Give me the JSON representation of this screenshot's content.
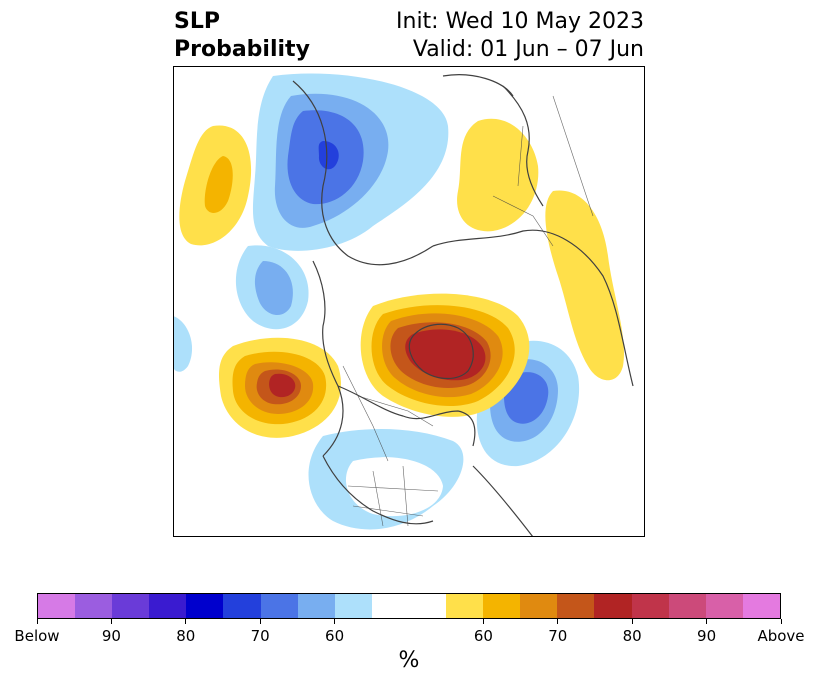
{
  "title": {
    "left_line1": "SLP",
    "left_line2": "Probability",
    "right_line1": "Init: Wed 10 May 2023",
    "right_line2": "Valid: 01 Jun – 07 Jun"
  },
  "map": {
    "projection": "north-polar-stereographic",
    "features": {
      "land_lines_color": "#404040",
      "anomalies": [
        {
          "label": "Gulf of Alaska above-normal center",
          "category": "above",
          "peak_pct": 80
        },
        {
          "label": "Greenland / Canadian Arctic above-normal center",
          "category": "above",
          "peak_pct": 80
        },
        {
          "label": "Eastern Europe / Scandinavia above-normal area",
          "category": "above",
          "peak_pct": 60
        },
        {
          "label": "North Pacific above-normal area",
          "category": "above",
          "peak_pct": 65
        },
        {
          "label": "Siberia below-normal center",
          "category": "below",
          "peak_pct": 75
        },
        {
          "label": "North Atlantic below-normal center",
          "category": "below",
          "peak_pct": 70
        },
        {
          "label": "Bering Sea below-normal area",
          "category": "below",
          "peak_pct": 65
        },
        {
          "label": "Central/Western US below-normal area",
          "category": "below",
          "peak_pct": 60
        }
      ]
    }
  },
  "colorbar": {
    "colors": [
      "#d67ae6",
      "#9b5de0",
      "#6a3bd8",
      "#3a1bd0",
      "#0000cd",
      "#2340dc",
      "#4b74e6",
      "#78aef0",
      "#ade0fb",
      "#ffffff",
      "#ffffff",
      "#ffe04a",
      "#f4b400",
      "#e08a10",
      "#c4561a",
      "#b12424",
      "#c0344a",
      "#cc4a7a",
      "#d860a8",
      "#e47ae0"
    ],
    "tick_labels": [
      "Below",
      "90",
      "80",
      "70",
      "60",
      "60",
      "70",
      "80",
      "90",
      "Above"
    ],
    "unit_label": "%"
  }
}
